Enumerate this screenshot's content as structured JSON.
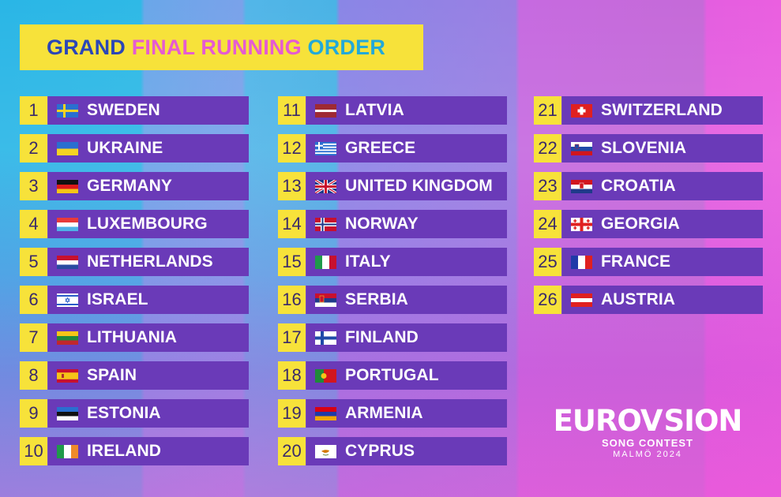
{
  "title": {
    "part1": "GRAND ",
    "part2": "FINAL ",
    "part3": "RUNNING ",
    "part4": "ORDER"
  },
  "columns": [
    [
      {
        "num": "1",
        "country": "SWEDEN",
        "flag": "se"
      },
      {
        "num": "2",
        "country": "UKRAINE",
        "flag": "ua"
      },
      {
        "num": "3",
        "country": "GERMANY",
        "flag": "de"
      },
      {
        "num": "4",
        "country": "LUXEMBOURG",
        "flag": "lu"
      },
      {
        "num": "5",
        "country": "NETHERLANDS",
        "flag": "nl"
      },
      {
        "num": "6",
        "country": "ISRAEL",
        "flag": "il"
      },
      {
        "num": "7",
        "country": "LITHUANIA",
        "flag": "lt"
      },
      {
        "num": "8",
        "country": "SPAIN",
        "flag": "es"
      },
      {
        "num": "9",
        "country": "ESTONIA",
        "flag": "ee"
      },
      {
        "num": "10",
        "country": "IRELAND",
        "flag": "ie"
      }
    ],
    [
      {
        "num": "11",
        "country": "LATVIA",
        "flag": "lv"
      },
      {
        "num": "12",
        "country": "GREECE",
        "flag": "gr"
      },
      {
        "num": "13",
        "country": "UNITED KINGDOM",
        "flag": "gb"
      },
      {
        "num": "14",
        "country": "NORWAY",
        "flag": "no"
      },
      {
        "num": "15",
        "country": "ITALY",
        "flag": "it"
      },
      {
        "num": "16",
        "country": "SERBIA",
        "flag": "rs"
      },
      {
        "num": "17",
        "country": "FINLAND",
        "flag": "fi"
      },
      {
        "num": "18",
        "country": "PORTUGAL",
        "flag": "pt"
      },
      {
        "num": "19",
        "country": "ARMENIA",
        "flag": "am"
      },
      {
        "num": "20",
        "country": "CYPRUS",
        "flag": "cy"
      }
    ],
    [
      {
        "num": "21",
        "country": "SWITZERLAND",
        "flag": "ch"
      },
      {
        "num": "22",
        "country": "SLOVENIA",
        "flag": "si"
      },
      {
        "num": "23",
        "country": "CROATIA",
        "flag": "hr"
      },
      {
        "num": "24",
        "country": "GEORGIA",
        "flag": "ge"
      },
      {
        "num": "25",
        "country": "FRANCE",
        "flag": "fr"
      },
      {
        "num": "26",
        "country": "AUSTRIA",
        "flag": "at"
      }
    ]
  ],
  "logo": {
    "word_left": "EUROV",
    "word_right": "SION",
    "subtitle": "SONG CONTEST",
    "location": "MALMÖ 2024"
  },
  "colors": {
    "yellow": "#f7e23a",
    "bar_purple": "#6a3ab8",
    "title_blue": "#2b46b7",
    "title_pink": "#e55bd2",
    "title_cyan": "#23a9d8"
  }
}
